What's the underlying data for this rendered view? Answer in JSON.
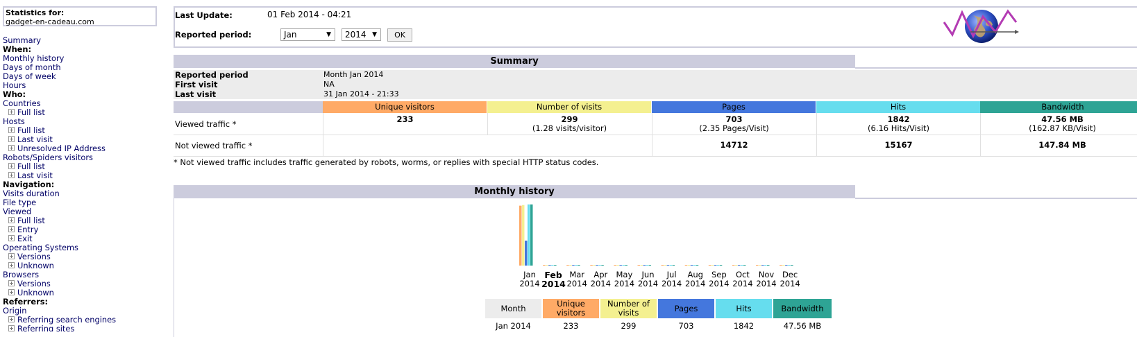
{
  "sidebar": {
    "stats_label": "Statistics for:",
    "domain": "gadget-en-cadeau.com",
    "items": [
      {
        "type": "link",
        "label": "Summary"
      },
      {
        "type": "head",
        "label": "When:"
      },
      {
        "type": "link",
        "label": "Monthly history"
      },
      {
        "type": "link",
        "label": "Days of month"
      },
      {
        "type": "link",
        "label": "Days of week"
      },
      {
        "type": "link",
        "label": "Hours"
      },
      {
        "type": "head",
        "label": "Who:"
      },
      {
        "type": "link",
        "label": "Countries"
      },
      {
        "type": "sub",
        "label": "Full list"
      },
      {
        "type": "link",
        "label": "Hosts"
      },
      {
        "type": "sub",
        "label": "Full list"
      },
      {
        "type": "sub",
        "label": "Last visit"
      },
      {
        "type": "sub",
        "label": "Unresolved IP Address"
      },
      {
        "type": "link",
        "label": "Robots/Spiders visitors"
      },
      {
        "type": "sub",
        "label": "Full list"
      },
      {
        "type": "sub",
        "label": "Last visit"
      },
      {
        "type": "head",
        "label": "Navigation:"
      },
      {
        "type": "link",
        "label": "Visits duration"
      },
      {
        "type": "link",
        "label": "File type"
      },
      {
        "type": "link",
        "label": "Viewed"
      },
      {
        "type": "sub",
        "label": "Full list"
      },
      {
        "type": "sub",
        "label": "Entry"
      },
      {
        "type": "sub",
        "label": "Exit"
      },
      {
        "type": "link",
        "label": "Operating Systems"
      },
      {
        "type": "sub",
        "label": "Versions"
      },
      {
        "type": "sub",
        "label": "Unknown"
      },
      {
        "type": "link",
        "label": "Browsers"
      },
      {
        "type": "sub",
        "label": "Versions"
      },
      {
        "type": "sub",
        "label": "Unknown"
      },
      {
        "type": "head",
        "label": "Referrers:"
      },
      {
        "type": "link",
        "label": "Origin"
      },
      {
        "type": "sub",
        "label": "Referring search engines"
      },
      {
        "type": "sub",
        "label": "Referring sites"
      }
    ]
  },
  "topbar": {
    "last_update_label": "Last Update:",
    "last_update_value": "01 Feb 2014 - 04:21",
    "period_label": "Reported period:",
    "month_select": "Jan",
    "year_select": "2014",
    "ok_label": "OK",
    "logo_icon": "awstats-logo-icon"
  },
  "summary": {
    "title": "Summary",
    "reported_period_label": "Reported period",
    "reported_period_value": "Month Jan 2014",
    "first_visit_label": "First visit",
    "first_visit_value": "NA",
    "last_visit_label": "Last visit",
    "last_visit_value": "31 Jan 2014 - 21:33",
    "columns": [
      {
        "label": "Unique visitors",
        "color": "#ffaa66"
      },
      {
        "label": "Number of visits",
        "color": "#f4f090"
      },
      {
        "label": "Pages",
        "color": "#4477dd"
      },
      {
        "label": "Hits",
        "color": "#66ddee"
      },
      {
        "label": "Bandwidth",
        "color": "#2ea495"
      }
    ],
    "viewed_label": "Viewed traffic *",
    "viewed": [
      {
        "value": "233",
        "sub": ""
      },
      {
        "value": "299",
        "sub": "(1.28 visits/visitor)"
      },
      {
        "value": "703",
        "sub": "(2.35 Pages/Visit)"
      },
      {
        "value": "1842",
        "sub": "(6.16 Hits/Visit)"
      },
      {
        "value": "47.56 MB",
        "sub": "(162.87 KB/Visit)"
      }
    ],
    "not_viewed_label": "Not viewed traffic *",
    "not_viewed": [
      "",
      "",
      "14712",
      "15167",
      "147.84 MB"
    ],
    "footnote": "* Not viewed traffic includes traffic generated by robots, worms, or replies with special HTTP status codes."
  },
  "monthly_history": {
    "title": "Monthly history",
    "months": [
      {
        "m": "Jan",
        "y": "2014"
      },
      {
        "m": "Feb",
        "y": "2014"
      },
      {
        "m": "Mar",
        "y": "2014"
      },
      {
        "m": "Apr",
        "y": "2014"
      },
      {
        "m": "May",
        "y": "2014"
      },
      {
        "m": "Jun",
        "y": "2014"
      },
      {
        "m": "Jul",
        "y": "2014"
      },
      {
        "m": "Aug",
        "y": "2014"
      },
      {
        "m": "Sep",
        "y": "2014"
      },
      {
        "m": "Oct",
        "y": "2014"
      },
      {
        "m": "Nov",
        "y": "2014"
      },
      {
        "m": "Dec",
        "y": "2014"
      }
    ],
    "current_month_index": 1,
    "table_headers": [
      "Month",
      "Unique visitors",
      "Number of visits",
      "Pages",
      "Hits",
      "Bandwidth"
    ],
    "table_header_colors": [
      "#ececec",
      "#ffaa66",
      "#f4f090",
      "#4477dd",
      "#66ddee",
      "#2ea495"
    ],
    "table_row": [
      "Jan 2014",
      "233",
      "299",
      "703",
      "1842",
      "47.56 MB"
    ]
  },
  "chart_data": {
    "type": "bar",
    "categories": [
      "Jan 2014",
      "Feb 2014",
      "Mar 2014",
      "Apr 2014",
      "May 2014",
      "Jun 2014",
      "Jul 2014",
      "Aug 2014",
      "Sep 2014",
      "Oct 2014",
      "Nov 2014",
      "Dec 2014"
    ],
    "series": [
      {
        "name": "Unique visitors",
        "color": "#ffaa66",
        "values": [
          233,
          0,
          0,
          0,
          0,
          0,
          0,
          0,
          0,
          0,
          0,
          0
        ]
      },
      {
        "name": "Number of visits",
        "color": "#f4f090",
        "values": [
          299,
          0,
          0,
          0,
          0,
          0,
          0,
          0,
          0,
          0,
          0,
          0
        ]
      },
      {
        "name": "Pages",
        "color": "#4477dd",
        "values": [
          703,
          0,
          0,
          0,
          0,
          0,
          0,
          0,
          0,
          0,
          0,
          0
        ]
      },
      {
        "name": "Hits",
        "color": "#66ddee",
        "values": [
          1842,
          0,
          0,
          0,
          0,
          0,
          0,
          0,
          0,
          0,
          0,
          0
        ]
      },
      {
        "name": "Bandwidth",
        "color": "#2ea495",
        "values": [
          47.56,
          0,
          0,
          0,
          0,
          0,
          0,
          0,
          0,
          0,
          0,
          0
        ]
      }
    ],
    "per_series_scale": true
  }
}
